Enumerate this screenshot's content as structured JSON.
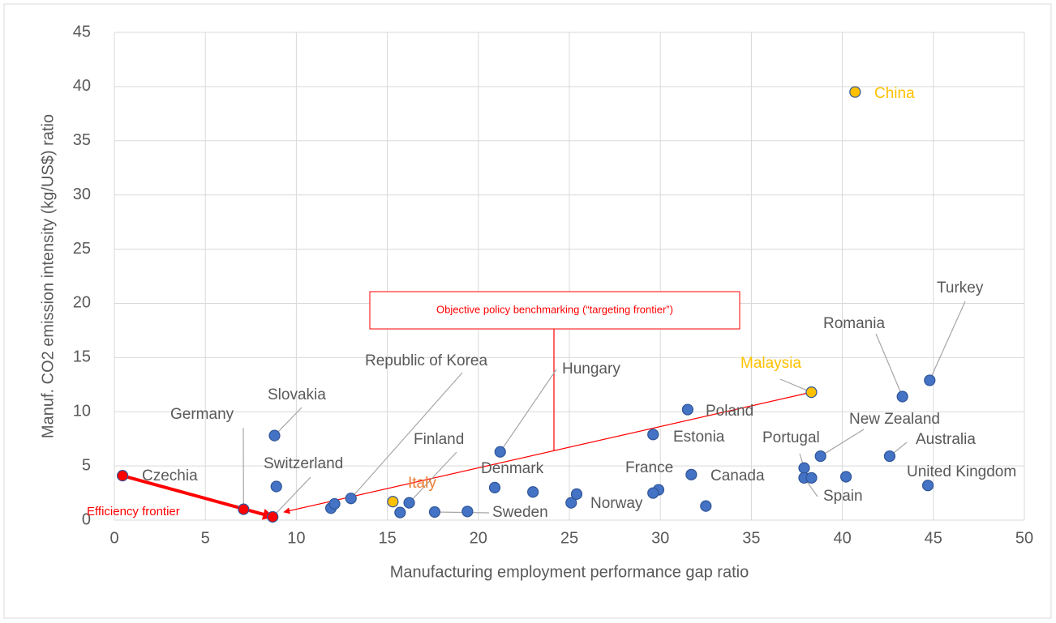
{
  "chart_data": {
    "type": "scatter",
    "x_label": "Manufacturing employment performance gap ratio",
    "y_label": "Manuf. CO2 emission intensity (kg/US$) ratio",
    "annotations": [
      "Efficiency frontier",
      "Objective policy benchmarking (“targeting frontier”)"
    ],
    "x": [
      0.45,
      7.1,
      8.7,
      8.8,
      13.0,
      16.2,
      15.3,
      20.9,
      17.6,
      21.2,
      25.1,
      29.9,
      29.6,
      31.5,
      31.7,
      38.3,
      37.9,
      37.9,
      38.8,
      42.6,
      44.7,
      43.3,
      44.8,
      40.7,
      8.9,
      11.9,
      12.1,
      15.7,
      19.4,
      23.0,
      25.4,
      29.6,
      32.5,
      38.3,
      40.2
    ],
    "y": [
      4.1,
      1.0,
      0.3,
      7.8,
      2.0,
      1.6,
      1.7,
      3.0,
      0.75,
      6.3,
      1.6,
      2.8,
      7.9,
      10.2,
      4.2,
      11.8,
      4.8,
      3.9,
      5.9,
      5.9,
      3.2,
      11.4,
      12.9,
      39.5,
      3.1,
      1.1,
      1.5,
      0.7,
      0.8,
      2.6,
      2.4,
      2.5,
      1.3,
      3.9,
      4.0
    ],
    "labels": [
      "Czechia",
      "Germany",
      "Switzerland",
      "Slovakia",
      "Republic of Korea",
      "Finland",
      "Italy",
      "Denmark",
      "Sweden",
      "Hungary",
      "Norway",
      "France",
      "Estonia",
      "Poland",
      "Canada",
      "Malaysia",
      "Portugal",
      "Spain",
      "New Zealand",
      "Australia",
      "United Kingdom",
      "Romania",
      "Turkey",
      "China",
      null,
      null,
      null,
      null,
      null,
      null,
      null,
      null,
      null,
      null,
      null
    ],
    "colors": [
      "#ff0000",
      "#ff0000",
      "#ff0000",
      "#4472c4",
      "#4472c4",
      "#4472c4",
      "#ffc000",
      "#4472c4",
      "#4472c4",
      "#4472c4",
      "#4472c4",
      "#4472c4",
      "#4472c4",
      "#4472c4",
      "#4472c4",
      "#ffc000",
      "#4472c4",
      "#4472c4",
      "#4472c4",
      "#4472c4",
      "#4472c4",
      "#4472c4",
      "#4472c4",
      "#ffc000",
      "#4472c4",
      "#4472c4",
      "#4472c4",
      "#4472c4",
      "#4472c4",
      "#4472c4",
      "#4472c4",
      "#4472c4",
      "#4472c4",
      "#4472c4",
      "#4472c4"
    ],
    "label_colors": [
      "#595959",
      "#595959",
      "#595959",
      "#595959",
      "#595959",
      "#595959",
      "#ed7d31",
      "#595959",
      "#595959",
      "#595959",
      "#595959",
      "#595959",
      "#595959",
      "#595959",
      "#595959",
      "#ffc000",
      "#595959",
      "#595959",
      "#595959",
      "#595959",
      "#595959",
      "#595959",
      "#595959",
      "#ffc000",
      null,
      null,
      null,
      null,
      null,
      null,
      null,
      null,
      null,
      null,
      null
    ],
    "xlim": [
      0,
      50
    ],
    "xticks": [
      0,
      5,
      10,
      15,
      20,
      25,
      30,
      35,
      40,
      45,
      50
    ],
    "ylim": [
      0,
      45
    ],
    "yticks": [
      0,
      5,
      10,
      15,
      20,
      25,
      30,
      35,
      40,
      45
    ],
    "grid": true
  }
}
